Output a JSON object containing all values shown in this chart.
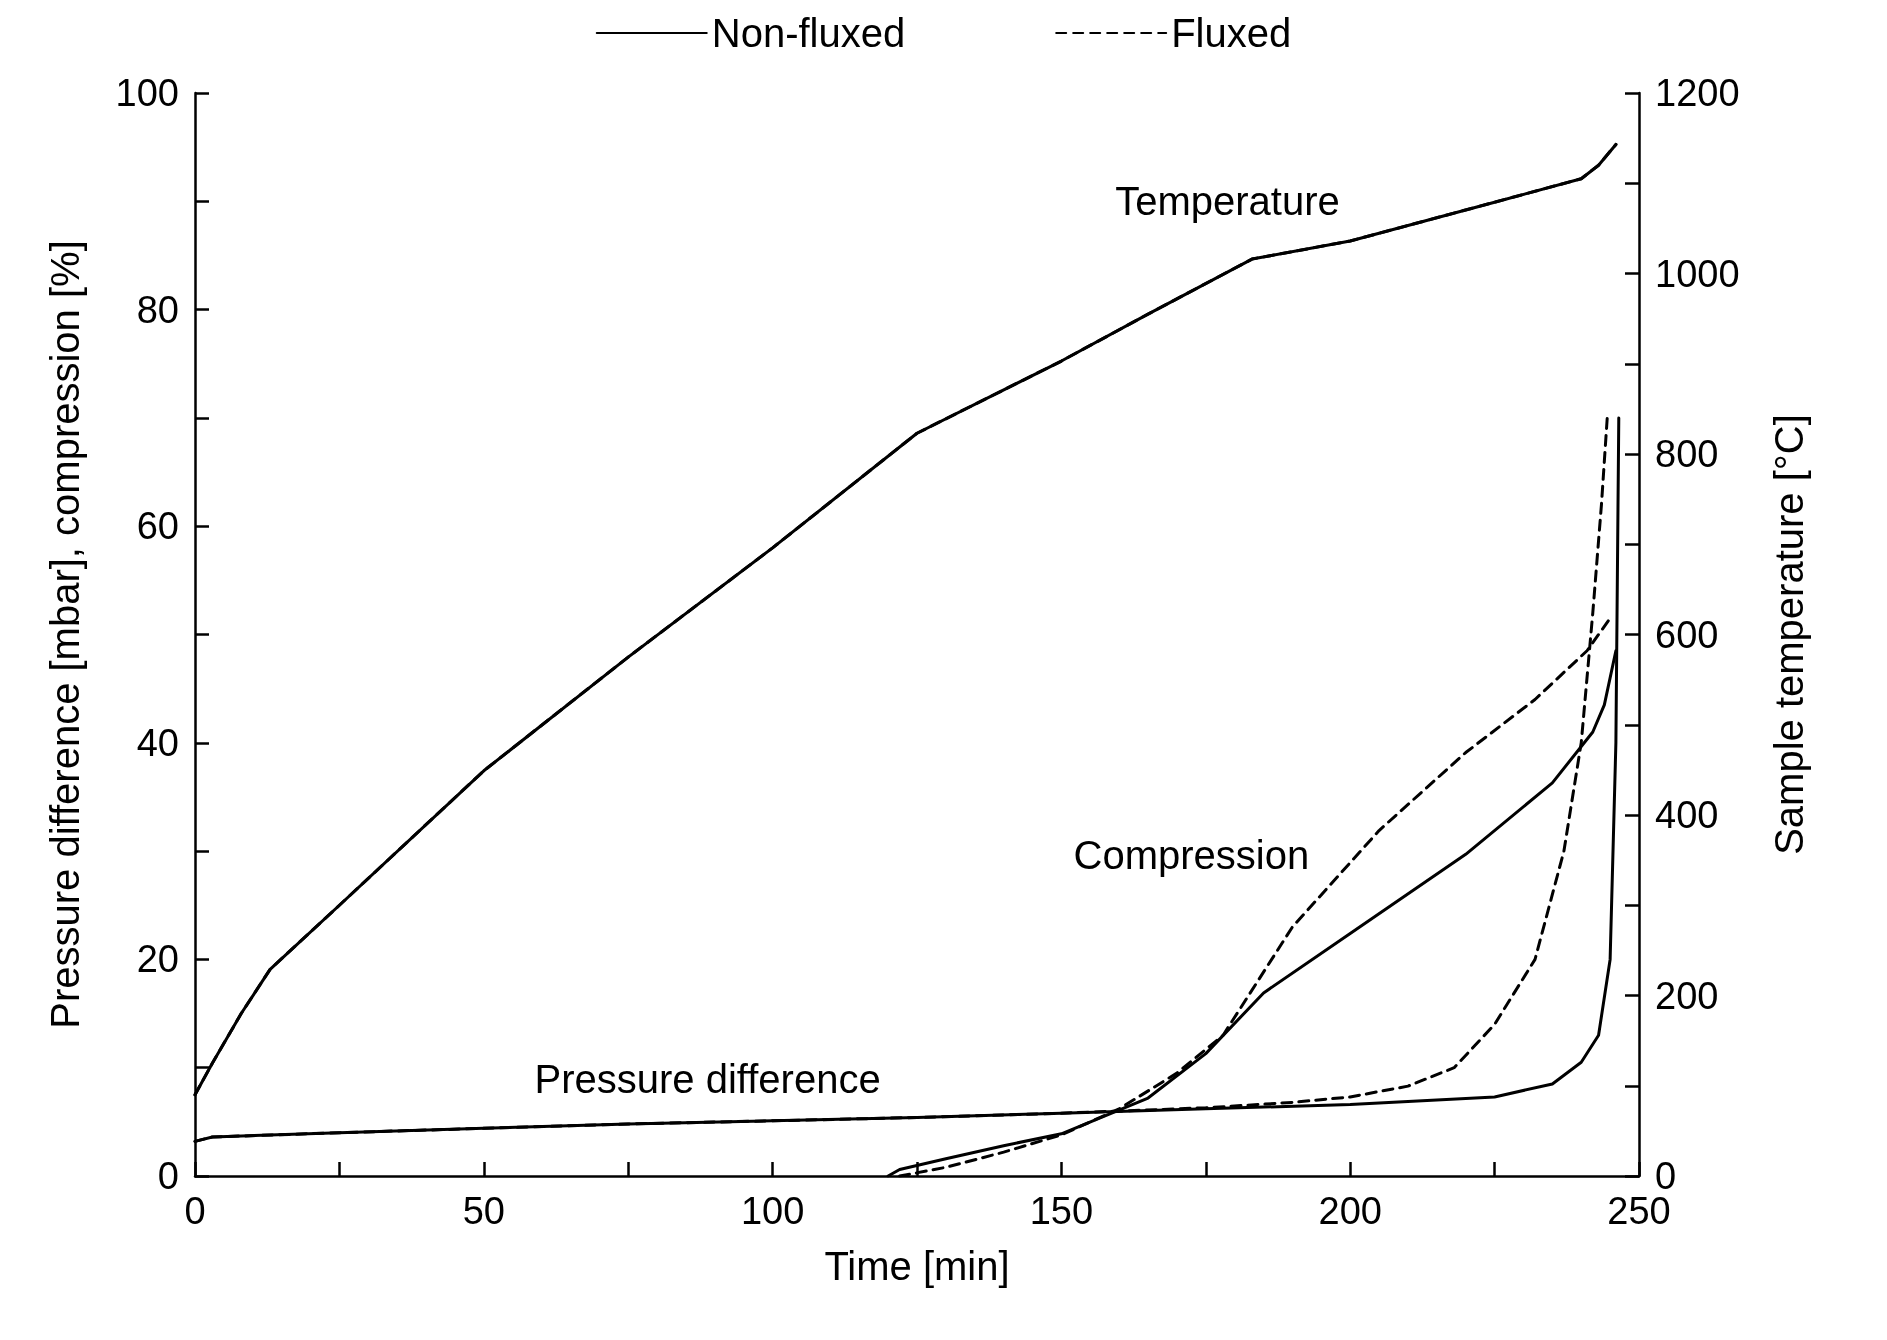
{
  "chart_data": {
    "type": "line",
    "xlabel": "Time [min]",
    "ylabel": "Pressure difference [mbar], compression [%]",
    "y2label": "Sample temperature [°C]",
    "xlim": [
      0,
      250
    ],
    "xticks": [
      0,
      {
        "value": 25,
        "label": null
      },
      50,
      {
        "value": 75,
        "label": null
      },
      100,
      {
        "value": 125,
        "label": null
      },
      150,
      {
        "value": 175,
        "label": null
      },
      200,
      {
        "value": 225,
        "label": null
      },
      250
    ],
    "ylim": [
      0,
      100
    ],
    "yticks": [
      0,
      {
        "value": 10,
        "label": null
      },
      20,
      {
        "value": 30,
        "label": null
      },
      40,
      {
        "value": 50,
        "label": null
      },
      60,
      {
        "value": 70,
        "label": null
      },
      80,
      {
        "value": 90,
        "label": null
      },
      100
    ],
    "y2lim": [
      0,
      1200
    ],
    "y2ticks": [
      0,
      {
        "value": 100,
        "label": null
      },
      200,
      {
        "value": 300,
        "label": null
      },
      400,
      {
        "value": 500,
        "label": null
      },
      600,
      {
        "value": 700,
        "label": null
      },
      800,
      {
        "value": 900,
        "label": null
      },
      1000,
      {
        "value": 1100,
        "label": null
      },
      1200
    ],
    "legend": "top",
    "grid": false,
    "marker": "none",
    "annotations": [
      "Temperature",
      "Compression",
      "Pressure difference"
    ],
    "series": [
      {
        "name": "Non-fluxed",
        "color": "#000000",
        "line_style": "solid",
        "axis": "y2",
        "x": [
          0,
          3,
          8,
          13,
          25,
          50,
          75,
          100,
          125,
          150,
          165,
          183,
          200,
          225,
          240,
          243,
          246
        ],
        "values": [
          90,
          125,
          180,
          229,
          300,
          449,
          575,
          696,
          823,
          903,
          955,
          1016,
          1036,
          1079,
          1105,
          1120,
          1143
        ]
      },
      {
        "name": "Fluxed",
        "color": "#000000",
        "line_style": "dashed",
        "axis": "y2",
        "x": [
          0,
          3,
          8,
          13,
          25,
          50,
          75,
          100,
          125,
          150,
          165,
          183,
          200,
          225,
          240,
          243,
          246
        ],
        "values": [
          90,
          125,
          180,
          229,
          300,
          449,
          575,
          696,
          823,
          903,
          955,
          1016,
          1036,
          1079,
          1105,
          1120,
          1143
        ]
      },
      {
        "color": "#000000",
        "line_style": "solid",
        "x": [
          120,
          122,
          130,
          140,
          150,
          165,
          175,
          185,
          200,
          220,
          235,
          242,
          244,
          246
        ],
        "values": [
          0,
          0.6,
          1.6,
          2.8,
          3.9,
          7.2,
          11.3,
          16.9,
          22.4,
          29.7,
          36.3,
          41,
          43.5,
          48.5
        ]
      },
      {
        "color": "#000000",
        "line_style": "dashed",
        "x": [
          122,
          130,
          140,
          150,
          160,
          170,
          178,
          190,
          205,
          220,
          232,
          241,
          245
        ],
        "values": [
          0,
          0.8,
          2.2,
          3.8,
          6.2,
          9.5,
          13,
          23,
          31.9,
          39.1,
          44,
          48.5,
          51.5
        ]
      },
      {
        "color": "#000000",
        "line_style": "solid",
        "x": [
          0,
          3,
          25,
          50,
          75,
          100,
          125,
          150,
          175,
          200,
          225,
          235,
          240,
          243,
          245,
          246,
          246.5
        ],
        "values": [
          3.2,
          3.6,
          4,
          4.4,
          4.8,
          5.1,
          5.4,
          5.8,
          6.2,
          6.6,
          7.3,
          8.5,
          10.5,
          13,
          20,
          40,
          70
        ]
      },
      {
        "color": "#000000",
        "line_style": "dashed",
        "x": [
          0,
          3,
          25,
          50,
          75,
          100,
          125,
          150,
          175,
          190,
          200,
          210,
          218,
          225,
          232,
          237,
          240,
          242,
          243.5,
          244.5
        ],
        "values": [
          3.2,
          3.6,
          4,
          4.4,
          4.8,
          5.1,
          5.4,
          5.8,
          6.3,
          6.8,
          7.3,
          8.3,
          10,
          14,
          20,
          30,
          40,
          52,
          62,
          70
        ]
      }
    ]
  }
}
